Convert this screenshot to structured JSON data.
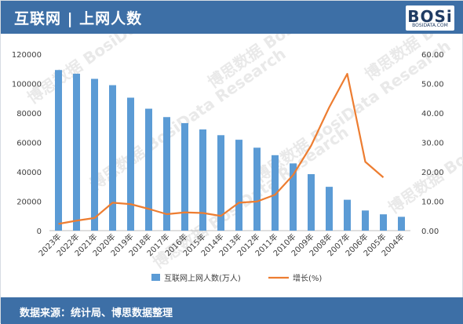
{
  "header": {
    "title": "互联网 | 上网人数"
  },
  "logo": {
    "mark": "BOSi",
    "sub": "BOSIDATA.COM"
  },
  "watermark": {
    "text": "博思数据 BosiData Research"
  },
  "footer": {
    "source": "数据来源：统计局、博思数据整理"
  },
  "chart_data": {
    "type": "bar",
    "categories": [
      "2023年",
      "2022年",
      "2021年",
      "2020年",
      "2019年",
      "2018年",
      "2017年",
      "2016年",
      "2015年",
      "2014年",
      "2013年",
      "2012年",
      "2011年",
      "2010年",
      "2009年",
      "2008年",
      "2007年",
      "2006年",
      "2005年",
      "2004年"
    ],
    "series": [
      {
        "name": "互联网上网人数(万人)",
        "type": "bar",
        "axis": "left",
        "color": "#5b9bd5",
        "values": [
          109200,
          106700,
          103200,
          98900,
          90400,
          82900,
          77200,
          73100,
          68800,
          64900,
          61800,
          56400,
          51300,
          45700,
          38400,
          29800,
          21000,
          13700,
          11100,
          9400
        ]
      },
      {
        "name": "增长(%)",
        "type": "line",
        "axis": "right",
        "color": "#ed7d31",
        "values": [
          2.3,
          3.4,
          4.3,
          9.5,
          9.0,
          7.4,
          5.6,
          6.2,
          6.0,
          5.0,
          9.5,
          9.9,
          12.2,
          18.9,
          28.9,
          41.9,
          53.3,
          23.4,
          18.1,
          null
        ]
      }
    ],
    "y_left": {
      "min": 0,
      "max": 120000,
      "ticks": [
        "0",
        "20000",
        "40000",
        "60000",
        "80000",
        "100000",
        "120000"
      ]
    },
    "y_right": {
      "min": 0,
      "max": 60,
      "ticks": [
        "0.00",
        "10.00",
        "20.00",
        "30.00",
        "40.00",
        "50.00",
        "60.00"
      ]
    },
    "legend_position": "bottom",
    "grid": false
  }
}
